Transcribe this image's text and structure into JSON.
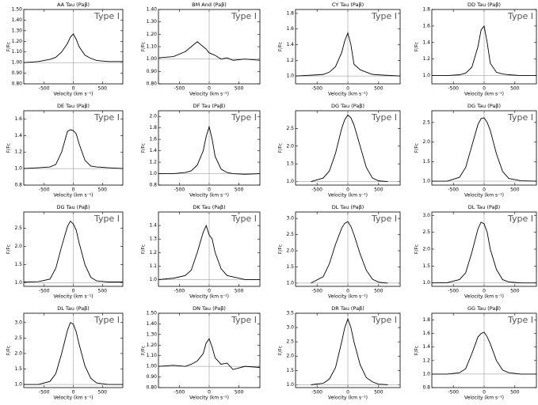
{
  "chart_data": [
    {
      "type": "line",
      "title": "AA Tau (Paβ)",
      "annotation": "Type I",
      "xlabel": "Velocity (km s⁻¹)",
      "ylabel": "F/Fc",
      "xlim": [
        -850,
        850
      ],
      "ylim": [
        0.8,
        1.5
      ],
      "xticks": [
        -500,
        0,
        500
      ],
      "yticks": [
        {
          "value": 0.8,
          "label": "0.80"
        },
        {
          "value": 0.9,
          "label": "0.90"
        },
        {
          "value": 1,
          "label": "1.00"
        },
        {
          "value": 1.1,
          "label": "1.10"
        },
        {
          "value": 1.2,
          "label": "1.20"
        },
        {
          "value": 1.3,
          "label": "1.30"
        },
        {
          "value": 1.4,
          "label": "1.40"
        },
        {
          "value": 1.5,
          "label": "1.50"
        }
      ],
      "hline": 1,
      "vline": 0,
      "color": "#000000",
      "x": [
        -850,
        -600,
        -400,
        -300,
        -200,
        -100,
        -50,
        0,
        50,
        100,
        200,
        300,
        400,
        600,
        850
      ],
      "values": [
        1.0,
        1.01,
        1.03,
        1.05,
        1.1,
        1.18,
        1.24,
        1.27,
        1.22,
        1.15,
        1.07,
        1.04,
        1.02,
        1.01,
        1.01
      ]
    },
    {
      "type": "line",
      "title": "BM And (Paβ)",
      "annotation": "Type I",
      "xlabel": "Velocity (km s⁻¹)",
      "ylabel": "F/Fc",
      "xlim": [
        -850,
        850
      ],
      "ylim": [
        0.8,
        1.4
      ],
      "xticks": [
        -500,
        0,
        500
      ],
      "yticks": [
        {
          "value": 0.8,
          "label": "0.80"
        },
        {
          "value": 0.9,
          "label": "0.90"
        },
        {
          "value": 1,
          "label": "1.00"
        },
        {
          "value": 1.1,
          "label": "1.10"
        },
        {
          "value": 1.2,
          "label": "1.20"
        },
        {
          "value": 1.3,
          "label": "1.30"
        },
        {
          "value": 1.4,
          "label": "1.40"
        }
      ],
      "hline": 1,
      "vline": 0,
      "color": "#000000",
      "x": [
        -850,
        -600,
        -400,
        -300,
        -200,
        -100,
        -50,
        0,
        50,
        100,
        200,
        300,
        400,
        600,
        850
      ],
      "values": [
        1.01,
        1.02,
        1.06,
        1.1,
        1.14,
        1.1,
        1.08,
        1.05,
        1.04,
        1.03,
        1.0,
        1.01,
        0.99,
        1.0,
        0.99
      ]
    },
    {
      "type": "line",
      "title": "CY Tau (Paβ)",
      "annotation": "Type I",
      "xlabel": "Velocity (km s⁻¹)",
      "ylabel": "F/Fc",
      "xlim": [
        -850,
        850
      ],
      "ylim": [
        0.9,
        1.85
      ],
      "xticks": [
        -500,
        0,
        500
      ],
      "yticks": [
        {
          "value": 1,
          "label": "1.0"
        },
        {
          "value": 1.2,
          "label": "1.2"
        },
        {
          "value": 1.4,
          "label": "1.4"
        },
        {
          "value": 1.6,
          "label": "1.6"
        },
        {
          "value": 1.8,
          "label": "1.8"
        }
      ],
      "hline": 1,
      "vline": 0,
      "color": "#000000",
      "x": [
        -850,
        -600,
        -400,
        -300,
        -200,
        -100,
        -50,
        0,
        50,
        100,
        200,
        300,
        400,
        600,
        850
      ],
      "values": [
        1.0,
        1.01,
        1.02,
        1.05,
        1.12,
        1.3,
        1.45,
        1.55,
        1.4,
        1.15,
        1.08,
        1.05,
        1.02,
        1.01,
        1.0
      ]
    },
    {
      "type": "line",
      "title": "DD Tau (Paβ)",
      "annotation": "Type I",
      "xlabel": "Velocity (km s⁻¹)",
      "ylabel": "F/Fc",
      "xlim": [
        -850,
        850
      ],
      "ylim": [
        0.9,
        1.8
      ],
      "xticks": [
        -500,
        0,
        500
      ],
      "yticks": [
        {
          "value": 1,
          "label": "1.0"
        },
        {
          "value": 1.2,
          "label": "1.2"
        },
        {
          "value": 1.4,
          "label": "1.4"
        },
        {
          "value": 1.6,
          "label": "1.6"
        },
        {
          "value": 1.8,
          "label": "1.8"
        }
      ],
      "hline": 1,
      "vline": 0,
      "color": "#000000",
      "x": [
        -850,
        -600,
        -400,
        -300,
        -200,
        -100,
        -50,
        0,
        50,
        100,
        200,
        300,
        400,
        600,
        850
      ],
      "values": [
        1.0,
        1.0,
        1.01,
        1.03,
        1.1,
        1.35,
        1.55,
        1.6,
        1.4,
        1.15,
        1.04,
        1.02,
        1.01,
        1.0,
        1.0
      ]
    },
    {
      "type": "line",
      "title": "DE Tau (Paβ)",
      "annotation": "Type I",
      "xlabel": "Velocity (km s⁻¹)",
      "ylabel": "F/Fc",
      "xlim": [
        -850,
        850
      ],
      "ylim": [
        0.8,
        1.7
      ],
      "xticks": [
        -500,
        0,
        500
      ],
      "yticks": [
        {
          "value": 0.8,
          "label": "0.8"
        },
        {
          "value": 1,
          "label": "1.0"
        },
        {
          "value": 1.2,
          "label": "1.2"
        },
        {
          "value": 1.4,
          "label": "1.4"
        },
        {
          "value": 1.6,
          "label": "1.6"
        }
      ],
      "hline": 1,
      "vline": 0,
      "color": "#000000",
      "x": [
        -850,
        -600,
        -400,
        -300,
        -200,
        -100,
        -50,
        0,
        50,
        100,
        200,
        300,
        400,
        600,
        850
      ],
      "values": [
        1.0,
        1.01,
        1.02,
        1.05,
        1.2,
        1.45,
        1.47,
        1.46,
        1.42,
        1.3,
        1.1,
        1.03,
        1.02,
        1.01,
        1.0
      ]
    },
    {
      "type": "line",
      "title": "DF Tau (Paβ)",
      "annotation": "Type I",
      "xlabel": "Velocity (km s⁻¹)",
      "ylabel": "F/Fc",
      "xlim": [
        -850,
        850
      ],
      "ylim": [
        0.8,
        2.1
      ],
      "xticks": [
        -500,
        0,
        500
      ],
      "yticks": [
        {
          "value": 0.8,
          "label": "0.8"
        },
        {
          "value": 1,
          "label": "1.0"
        },
        {
          "value": 1.2,
          "label": "1.2"
        },
        {
          "value": 1.4,
          "label": "1.4"
        },
        {
          "value": 1.6,
          "label": "1.6"
        },
        {
          "value": 1.8,
          "label": "1.8"
        },
        {
          "value": 2,
          "label": "2.0"
        }
      ],
      "hline": 1,
      "vline": 0,
      "color": "#000000",
      "x": [
        -850,
        -600,
        -400,
        -300,
        -200,
        -100,
        -50,
        0,
        50,
        100,
        200,
        300,
        400,
        600,
        850
      ],
      "values": [
        1.0,
        1.0,
        1.02,
        1.05,
        1.15,
        1.4,
        1.65,
        1.82,
        1.6,
        1.3,
        1.08,
        1.02,
        1.0,
        0.99,
        1.0
      ]
    },
    {
      "type": "line",
      "title": "DG Tau (Paβ)",
      "annotation": "Type I",
      "xlabel": "Velocity (km s⁻¹)",
      "ylabel": "F/Fc",
      "xlim": [
        -850,
        850
      ],
      "ylim": [
        0.9,
        3.0
      ],
      "xticks": [
        -500,
        0,
        500
      ],
      "yticks": [
        {
          "value": 1,
          "label": "1.0"
        },
        {
          "value": 1.5,
          "label": "1.5"
        },
        {
          "value": 2,
          "label": "2.0"
        },
        {
          "value": 2.5,
          "label": "2.5"
        }
      ],
      "hline": 1,
      "vline": 0,
      "color": "#000000",
      "x": [
        -600,
        -400,
        -300,
        -200,
        -100,
        -50,
        0,
        50,
        100,
        200,
        300,
        400,
        500,
        650
      ],
      "values": [
        1.0,
        1.1,
        1.3,
        1.8,
        2.5,
        2.75,
        2.88,
        2.8,
        2.6,
        2.0,
        1.4,
        1.1,
        1.02,
        1.0
      ]
    },
    {
      "type": "line",
      "title": "DG Tau (Paβ)",
      "annotation": "Type I",
      "xlabel": "Velocity (km s⁻¹)",
      "ylabel": "F/Fc",
      "xlim": [
        -850,
        850
      ],
      "ylim": [
        0.9,
        2.8
      ],
      "xticks": [
        -500,
        0,
        500
      ],
      "yticks": [
        {
          "value": 1,
          "label": "1.0"
        },
        {
          "value": 1.5,
          "label": "1.5"
        },
        {
          "value": 2,
          "label": "2.0"
        },
        {
          "value": 2.5,
          "label": "2.5"
        }
      ],
      "hline": 1,
      "vline": 0,
      "color": "#000000",
      "x": [
        -850,
        -600,
        -400,
        -300,
        -200,
        -100,
        -50,
        0,
        50,
        100,
        200,
        300,
        400,
        600,
        850
      ],
      "values": [
        1.0,
        1.0,
        1.1,
        1.35,
        1.9,
        2.45,
        2.6,
        2.62,
        2.5,
        2.3,
        1.7,
        1.25,
        1.07,
        1.01,
        1.0
      ]
    },
    {
      "type": "line",
      "title": "DG Tau (Paβ)",
      "annotation": "Type I",
      "xlabel": "Velocity (km s⁻¹)",
      "ylabel": "F/Fc",
      "xlim": [
        -850,
        850
      ],
      "ylim": [
        0.9,
        2.95
      ],
      "xticks": [
        -500,
        0,
        500
      ],
      "yticks": [
        {
          "value": 1,
          "label": "1.0"
        },
        {
          "value": 1.5,
          "label": "1.5"
        },
        {
          "value": 2,
          "label": "2.0"
        },
        {
          "value": 2.5,
          "label": "2.5"
        }
      ],
      "hline": 1,
      "vline": 0,
      "color": "#000000",
      "x": [
        -850,
        -600,
        -400,
        -300,
        -200,
        -100,
        -50,
        0,
        50,
        100,
        200,
        300,
        400,
        600,
        850
      ],
      "values": [
        1.02,
        1.03,
        1.1,
        1.4,
        2.0,
        2.55,
        2.7,
        2.62,
        2.45,
        2.1,
        1.5,
        1.15,
        1.05,
        1.02,
        1.02
      ]
    },
    {
      "type": "line",
      "title": "DK Tau (Paβ)",
      "annotation": "Type I",
      "xlabel": "Velocity (km s⁻¹)",
      "ylabel": "F/Fc",
      "xlim": [
        -850,
        850
      ],
      "ylim": [
        0.95,
        1.5
      ],
      "xticks": [
        -500,
        0,
        500
      ],
      "yticks": [
        {
          "value": 1,
          "label": "1.0"
        },
        {
          "value": 1.1,
          "label": "1.1"
        },
        {
          "value": 1.2,
          "label": "1.2"
        },
        {
          "value": 1.3,
          "label": "1.3"
        },
        {
          "value": 1.4,
          "label": "1.4"
        }
      ],
      "hline": 1,
      "vline": 0,
      "color": "#000000",
      "x": [
        -850,
        -600,
        -400,
        -300,
        -200,
        -100,
        -50,
        0,
        50,
        100,
        200,
        300,
        400,
        600,
        850
      ],
      "values": [
        1.0,
        1.01,
        1.03,
        1.07,
        1.2,
        1.35,
        1.4,
        1.33,
        1.3,
        1.2,
        1.08,
        1.03,
        1.02,
        1.0,
        1.0
      ]
    },
    {
      "type": "line",
      "title": "DL Tau (Paβ)",
      "annotation": "Type I",
      "xlabel": "Velocity (km s⁻¹)",
      "ylabel": "F/Fc",
      "xlim": [
        -850,
        850
      ],
      "ylim": [
        0.9,
        3.2
      ],
      "xticks": [
        -500,
        0,
        500
      ],
      "yticks": [
        {
          "value": 1,
          "label": "1.0"
        },
        {
          "value": 1.5,
          "label": "1.5"
        },
        {
          "value": 2,
          "label": "2.0"
        },
        {
          "value": 2.5,
          "label": "2.5"
        },
        {
          "value": 3,
          "label": "3.0"
        }
      ],
      "hline": 1,
      "vline": 0,
      "color": "#000000",
      "x": [
        -600,
        -400,
        -300,
        -200,
        -100,
        -50,
        0,
        50,
        100,
        200,
        300,
        400,
        500,
        650
      ],
      "values": [
        1.0,
        1.2,
        1.6,
        2.2,
        2.7,
        2.85,
        2.9,
        2.75,
        2.5,
        1.9,
        1.4,
        1.12,
        1.03,
        1.0
      ]
    },
    {
      "type": "line",
      "title": "DL Tau (Paβ)",
      "annotation": "Type I",
      "xlabel": "Velocity (km s⁻¹)",
      "ylabel": "F/Fc",
      "xlim": [
        -850,
        850
      ],
      "ylim": [
        0.9,
        3.1
      ],
      "xticks": [
        -500,
        0,
        500
      ],
      "yticks": [
        {
          "value": 1,
          "label": "1.0"
        },
        {
          "value": 1.5,
          "label": "1.5"
        },
        {
          "value": 2,
          "label": "2.0"
        },
        {
          "value": 2.5,
          "label": "2.5"
        },
        {
          "value": 3,
          "label": "3.0"
        }
      ],
      "hline": 1,
      "vline": 0,
      "color": "#000000",
      "x": [
        -850,
        -600,
        -400,
        -300,
        -200,
        -100,
        -50,
        0,
        50,
        100,
        200,
        300,
        400,
        600,
        850
      ],
      "values": [
        1.0,
        1.01,
        1.1,
        1.3,
        1.9,
        2.6,
        2.8,
        2.75,
        2.5,
        2.0,
        1.4,
        1.1,
        1.03,
        1.0,
        1.0
      ]
    },
    {
      "type": "line",
      "title": "DL Tau (Paβ)",
      "annotation": "Type I",
      "xlabel": "Velocity (km s⁻¹)",
      "ylabel": "F/Fc",
      "xlim": [
        -850,
        850
      ],
      "ylim": [
        0.9,
        3.3
      ],
      "xticks": [
        -500,
        0,
        500
      ],
      "yticks": [
        {
          "value": 1,
          "label": "1.0"
        },
        {
          "value": 1.5,
          "label": "1.5"
        },
        {
          "value": 2,
          "label": "2.0"
        },
        {
          "value": 2.5,
          "label": "2.5"
        },
        {
          "value": 3,
          "label": "3.0"
        }
      ],
      "hline": 1,
      "vline": 0,
      "color": "#000000",
      "x": [
        -850,
        -600,
        -400,
        -300,
        -200,
        -100,
        -50,
        0,
        50,
        100,
        200,
        300,
        400,
        600,
        850
      ],
      "values": [
        1.0,
        1.0,
        1.1,
        1.35,
        2.0,
        2.75,
        3.0,
        2.95,
        2.7,
        2.3,
        1.6,
        1.2,
        1.05,
        1.0,
        1.0
      ]
    },
    {
      "type": "line",
      "title": "DN Tau (Paβ)",
      "annotation": "Type I",
      "xlabel": "Velocity (km s⁻¹)",
      "ylabel": "F/Fc",
      "xlim": [
        -850,
        850
      ],
      "ylim": [
        0.8,
        1.5
      ],
      "xticks": [
        -500,
        0,
        500
      ],
      "yticks": [
        {
          "value": 0.8,
          "label": "0.80"
        },
        {
          "value": 0.9,
          "label": "0.90"
        },
        {
          "value": 1,
          "label": "1.00"
        },
        {
          "value": 1.1,
          "label": "1.10"
        },
        {
          "value": 1.2,
          "label": "1.20"
        },
        {
          "value": 1.3,
          "label": "1.30"
        },
        {
          "value": 1.4,
          "label": "1.40"
        },
        {
          "value": 1.5,
          "label": "1.50"
        }
      ],
      "hline": 1,
      "vline": 0,
      "color": "#000000",
      "x": [
        -850,
        -600,
        -400,
        -300,
        -200,
        -100,
        -50,
        0,
        50,
        100,
        200,
        300,
        400,
        600,
        850
      ],
      "values": [
        1.0,
        1.01,
        1.0,
        1.02,
        1.05,
        1.12,
        1.22,
        1.26,
        1.18,
        1.08,
        1.02,
        1.03,
        0.97,
        1.0,
        0.99
      ]
    },
    {
      "type": "line",
      "title": "DR Tau (Paβ)",
      "annotation": "Type I",
      "xlabel": "Velocity (km s⁻¹)",
      "ylabel": "F/Fc",
      "xlim": [
        -850,
        850
      ],
      "ylim": [
        0.9,
        3.5
      ],
      "xticks": [
        -500,
        0,
        500
      ],
      "yticks": [
        {
          "value": 1,
          "label": "1.0"
        },
        {
          "value": 1.5,
          "label": "1.5"
        },
        {
          "value": 2,
          "label": "2.0"
        },
        {
          "value": 2.5,
          "label": "2.5"
        },
        {
          "value": 3,
          "label": "3.0"
        },
        {
          "value": 3.5,
          "label": "3.5"
        }
      ],
      "hline": 1,
      "vline": 0,
      "color": "#000000",
      "x": [
        -600,
        -400,
        -300,
        -200,
        -100,
        -50,
        0,
        50,
        100,
        200,
        300,
        400,
        500,
        650
      ],
      "values": [
        1.0,
        1.05,
        1.2,
        1.6,
        2.5,
        3.0,
        3.3,
        3.0,
        2.5,
        1.7,
        1.25,
        1.1,
        1.02,
        1.0
      ]
    },
    {
      "type": "line",
      "title": "GG Tau (Paβ)",
      "annotation": "Type I",
      "xlabel": "Velocity (km s⁻¹)",
      "ylabel": "F/Fc",
      "xlim": [
        -850,
        850
      ],
      "ylim": [
        0.8,
        1.9
      ],
      "xticks": [
        -500,
        0,
        500
      ],
      "yticks": [
        {
          "value": 0.8,
          "label": "0.8"
        },
        {
          "value": 1,
          "label": "1.0"
        },
        {
          "value": 1.2,
          "label": "1.2"
        },
        {
          "value": 1.4,
          "label": "1.4"
        },
        {
          "value": 1.6,
          "label": "1.6"
        },
        {
          "value": 1.8,
          "label": "1.8"
        }
      ],
      "hline": 1,
      "vline": 0,
      "color": "#000000",
      "x": [
        -850,
        -600,
        -400,
        -300,
        -200,
        -100,
        -50,
        0,
        50,
        100,
        200,
        300,
        400,
        600,
        850
      ],
      "values": [
        1.0,
        1.0,
        1.02,
        1.08,
        1.3,
        1.55,
        1.6,
        1.62,
        1.55,
        1.45,
        1.2,
        1.06,
        1.02,
        1.0,
        1.0
      ]
    }
  ]
}
